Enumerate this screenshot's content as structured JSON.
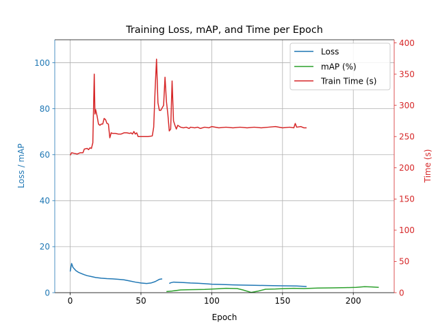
{
  "chart_data": {
    "type": "line",
    "title": "Training Loss, mAP, and Time per Epoch",
    "xlabel": "Epoch",
    "ylabel_left": "Loss / mAP",
    "ylabel_right": "Time (s)",
    "xlim": [
      -10.9,
      228.9
    ],
    "ylim_left": [
      0,
      110
    ],
    "ylim_right": [
      0,
      405
    ],
    "xticks": [
      0,
      50,
      100,
      150,
      200
    ],
    "yticks_left": [
      0,
      20,
      40,
      60,
      80,
      100
    ],
    "yticks_right": [
      0,
      50,
      100,
      150,
      200,
      250,
      300,
      350,
      400
    ],
    "grid": true,
    "legend_position": "top-right",
    "colors": {
      "left_axis": "#1f77b4",
      "right_axis": "#d62728",
      "loss": "#1f77b4",
      "map": "#2ca02c",
      "time": "#d62728"
    },
    "series": [
      {
        "name": "Loss",
        "axis": "left",
        "color": "#1f77b4",
        "segments": [
          [
            [
              0,
              9.2
            ],
            [
              1,
              12.7
            ],
            [
              2,
              11.0
            ],
            [
              4,
              9.6
            ],
            [
              6,
              8.8
            ],
            [
              8,
              8.3
            ],
            [
              10,
              7.8
            ],
            [
              12,
              7.4
            ],
            [
              15,
              7.0
            ],
            [
              18,
              6.6
            ],
            [
              22,
              6.3
            ],
            [
              26,
              6.1
            ],
            [
              30,
              6.0
            ],
            [
              34,
              5.8
            ],
            [
              38,
              5.6
            ],
            [
              42,
              5.1
            ],
            [
              46,
              4.6
            ],
            [
              50,
              4.2
            ],
            [
              54,
              4.0
            ],
            [
              57,
              4.2
            ],
            [
              60,
              4.8
            ],
            [
              63,
              5.8
            ],
            [
              65,
              6.0
            ]
          ],
          [
            [
              70,
              4.0
            ],
            [
              71,
              4.3
            ],
            [
              73,
              4.6
            ],
            [
              76,
              4.5
            ],
            [
              80,
              4.4
            ],
            [
              85,
              4.2
            ],
            [
              90,
              4.1
            ],
            [
              95,
              3.9
            ],
            [
              100,
              3.7
            ],
            [
              105,
              3.6
            ],
            [
              110,
              3.5
            ],
            [
              115,
              3.4
            ],
            [
              120,
              3.3
            ],
            [
              130,
              3.2
            ],
            [
              140,
              3.1
            ],
            [
              150,
              3.0
            ],
            [
              160,
              2.9
            ],
            [
              167,
              2.7
            ]
          ]
        ]
      },
      {
        "name": "mAP (%)",
        "axis": "left",
        "color": "#2ca02c",
        "segments": [
          [
            [
              68,
              0.5
            ],
            [
              72,
              0.7
            ],
            [
              78,
              1.2
            ],
            [
              85,
              1.3
            ],
            [
              95,
              1.4
            ],
            [
              105,
              1.7
            ],
            [
              110,
              1.9
            ],
            [
              118,
              1.8
            ],
            [
              122,
              1.2
            ],
            [
              128,
              0.1
            ],
            [
              133,
              0.7
            ],
            [
              138,
              1.5
            ],
            [
              145,
              1.6
            ],
            [
              152,
              1.8
            ],
            [
              158,
              1.9
            ],
            [
              165,
              1.8
            ],
            [
              175,
              2.0
            ],
            [
              185,
              2.1
            ],
            [
              195,
              2.2
            ],
            [
              202,
              2.3
            ],
            [
              208,
              2.6
            ],
            [
              213,
              2.5
            ],
            [
              218,
              2.3
            ]
          ]
        ]
      },
      {
        "name": "Train Time (s)",
        "axis": "right",
        "color": "#d62728",
        "segments": [
          [
            [
              0,
              220
            ],
            [
              1,
              224
            ],
            [
              3,
              223
            ],
            [
              5,
              222
            ],
            [
              7,
              224
            ],
            [
              9,
              224
            ],
            [
              10,
              230
            ],
            [
              12,
              231
            ],
            [
              13,
              229
            ],
            [
              14,
              232
            ],
            [
              15,
              231
            ],
            [
              16,
              240
            ],
            [
              17,
              350
            ],
            [
              17.5,
              286
            ],
            [
              18,
              293
            ],
            [
              19,
              283
            ],
            [
              20,
              270
            ],
            [
              21,
              268
            ],
            [
              22,
              270
            ],
            [
              23,
              270
            ],
            [
              24,
              279
            ],
            [
              25,
              277
            ],
            [
              26,
              271
            ],
            [
              27,
              270
            ],
            [
              28,
              248
            ],
            [
              29,
              256
            ],
            [
              30,
              255
            ],
            [
              32,
              255
            ],
            [
              34,
              254
            ],
            [
              36,
              254
            ],
            [
              38,
              256
            ],
            [
              40,
              256
            ],
            [
              42,
              255
            ],
            [
              43,
              256
            ],
            [
              44,
              254
            ],
            [
              45,
              258
            ],
            [
              46,
              254
            ],
            [
              47,
              256
            ],
            [
              48,
              250
            ],
            [
              49,
              250
            ],
            [
              50,
              250
            ],
            [
              55,
              250
            ],
            [
              58,
              251
            ],
            [
              59,
              265
            ],
            [
              60,
              325
            ],
            [
              61,
              374
            ],
            [
              62,
              304
            ],
            [
              63,
              292
            ],
            [
              64,
              292
            ],
            [
              65,
              296
            ],
            [
              66,
              300
            ],
            [
              67,
              345
            ],
            [
              68,
              306
            ],
            [
              69,
              286
            ],
            [
              70,
              259
            ],
            [
              71,
              262
            ],
            [
              72,
              339
            ],
            [
              73,
              275
            ],
            [
              74,
              268
            ],
            [
              75,
              262
            ],
            [
              76,
              268
            ],
            [
              78,
              265
            ],
            [
              80,
              264
            ],
            [
              82,
              265
            ],
            [
              84,
              263
            ],
            [
              85,
              265
            ],
            [
              88,
              264
            ],
            [
              90,
              265
            ],
            [
              92,
              263
            ],
            [
              95,
              265
            ],
            [
              98,
              264
            ],
            [
              100,
              266
            ],
            [
              105,
              264
            ],
            [
              110,
              265
            ],
            [
              115,
              264
            ],
            [
              120,
              265
            ],
            [
              125,
              264
            ],
            [
              130,
              265
            ],
            [
              135,
              264
            ],
            [
              140,
              265
            ],
            [
              145,
              266
            ],
            [
              150,
              264
            ],
            [
              155,
              265
            ],
            [
              158,
              264
            ],
            [
              159,
              271
            ],
            [
              160,
              265
            ],
            [
              163,
              266
            ],
            [
              165,
              264
            ],
            [
              167,
              264
            ]
          ]
        ]
      }
    ]
  }
}
